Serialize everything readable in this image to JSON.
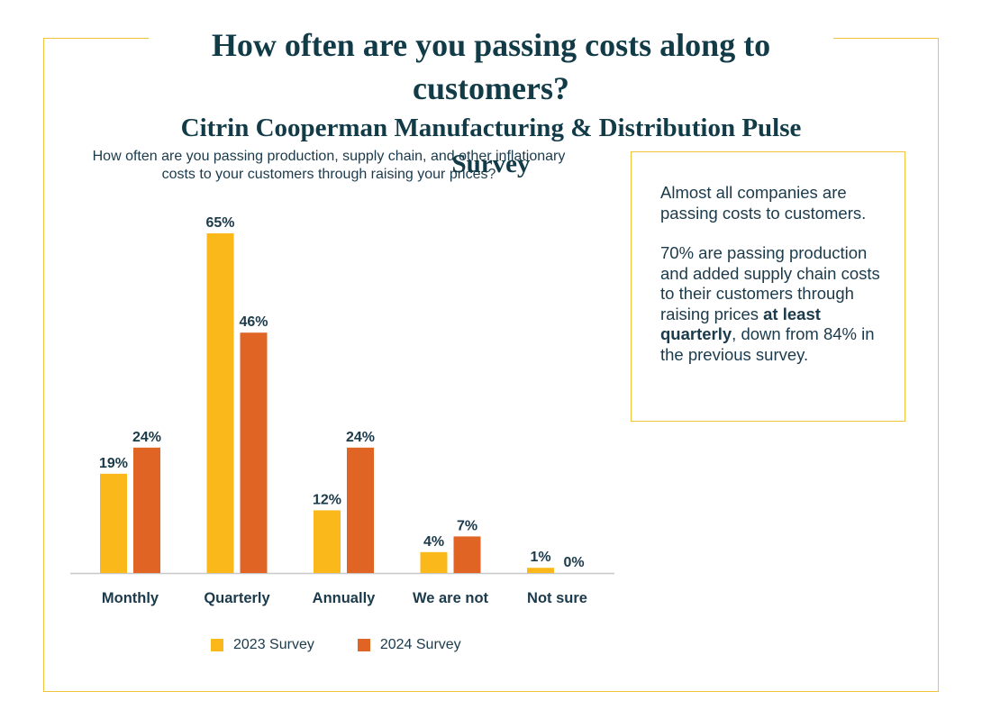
{
  "header": {
    "title": "How often are you passing costs along to customers?",
    "subtitle": "Citrin Cooperman Manufacturing & Distribution Pulse Survey"
  },
  "callout": {
    "paragraph1": "Almost all companies are passing costs to customers.",
    "paragraph2_prefix": "70% are passing production and added supply chain costs to their customers through raising prices ",
    "paragraph2_bold": "at least quarterly",
    "paragraph2_suffix": ", down from 84% in the previous survey."
  },
  "colors": {
    "series_2023": "#fbb81b",
    "series_2024": "#e06424",
    "text": "#1b3a4b",
    "frame": "#f0c43a"
  },
  "chart_data": {
    "type": "bar",
    "title": "How often are you passing production, supply chain, and other inflationary costs to your customers through raising your prices?",
    "categories": [
      "Monthly",
      "Quarterly",
      "Annually",
      "We are not",
      "Not sure"
    ],
    "series": [
      {
        "name": "2023 Survey",
        "values": [
          19,
          65,
          12,
          4,
          1
        ],
        "labels": [
          "19%",
          "65%",
          "12%",
          "4%",
          "1%"
        ]
      },
      {
        "name": "2024 Survey",
        "values": [
          24,
          46,
          24,
          7,
          0
        ],
        "labels": [
          "24%",
          "46%",
          "24%",
          "7%",
          "0%"
        ]
      }
    ],
    "ylim": [
      0,
      65
    ],
    "unit": "%",
    "grid": false,
    "legend": "bottom"
  }
}
